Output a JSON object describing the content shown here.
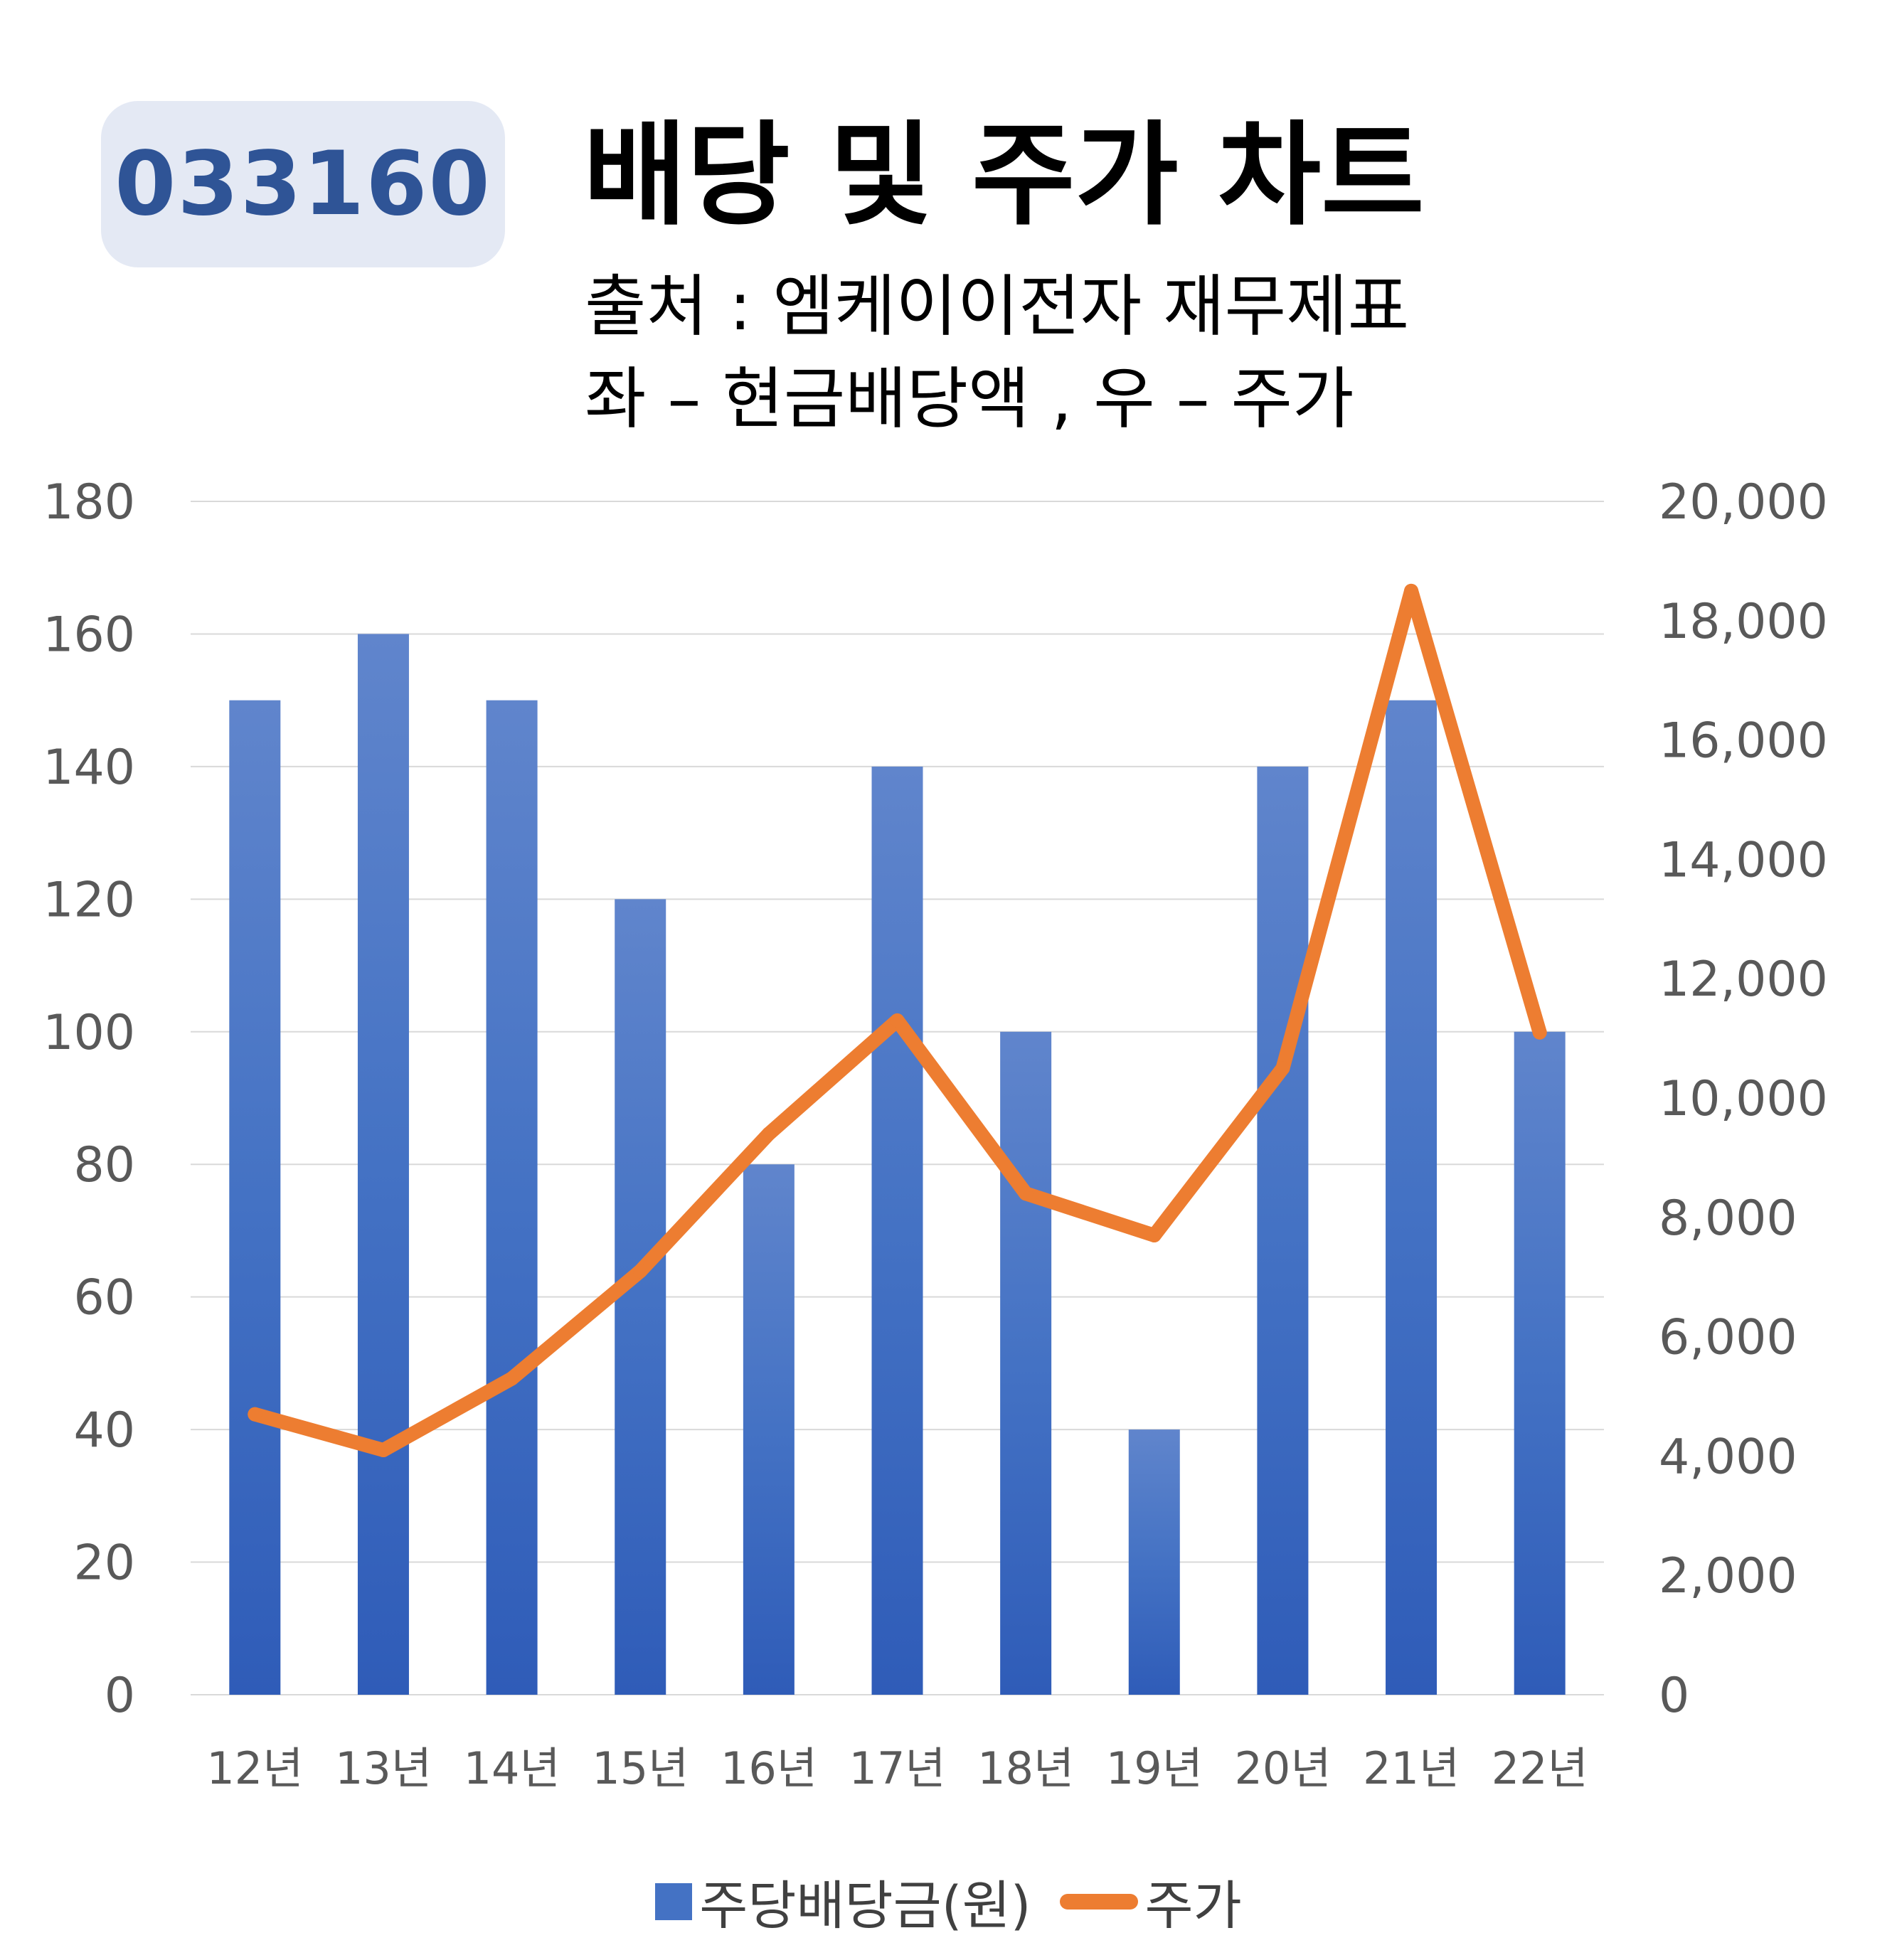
{
  "badge": "033160",
  "title": "배당 및 주가 차트",
  "subtitle1": "출처 : 엠케이이전자 재무제표",
  "subtitle2": "좌 – 현금배당액 , 우 – 주가",
  "colors": {
    "bar": "#4472c4",
    "line": "#ed7d31",
    "grid": "#d9d9d9"
  },
  "chart_data": {
    "type": "bar+line",
    "categories": [
      "12년",
      "13년",
      "14년",
      "15년",
      "16년",
      "17년",
      "18년",
      "19년",
      "20년",
      "21년",
      "22년"
    ],
    "series": [
      {
        "name": "주당배당금(원)",
        "type": "bar",
        "axis": "left",
        "values": [
          150,
          160,
          150,
          120,
          80,
          140,
          100,
          40,
          140,
          150,
          100
        ]
      },
      {
        "name": "주가",
        "type": "line",
        "axis": "right",
        "values": [
          4700,
          4100,
          5300,
          7100,
          9400,
          11300,
          8400,
          7700,
          10500,
          18500,
          11100
        ]
      }
    ],
    "y_left": {
      "min": 0,
      "max": 180,
      "step": 20,
      "ticks": [
        "0",
        "20",
        "40",
        "60",
        "80",
        "100",
        "120",
        "140",
        "160",
        "180"
      ]
    },
    "y_right": {
      "min": 0,
      "max": 20000,
      "step": 2000,
      "ticks": [
        "0",
        "2,000",
        "4,000",
        "6,000",
        "8,000",
        "10,000",
        "12,000",
        "14,000",
        "16,000",
        "18,000",
        "20,000"
      ]
    },
    "grid": true,
    "legend": "bottom"
  }
}
